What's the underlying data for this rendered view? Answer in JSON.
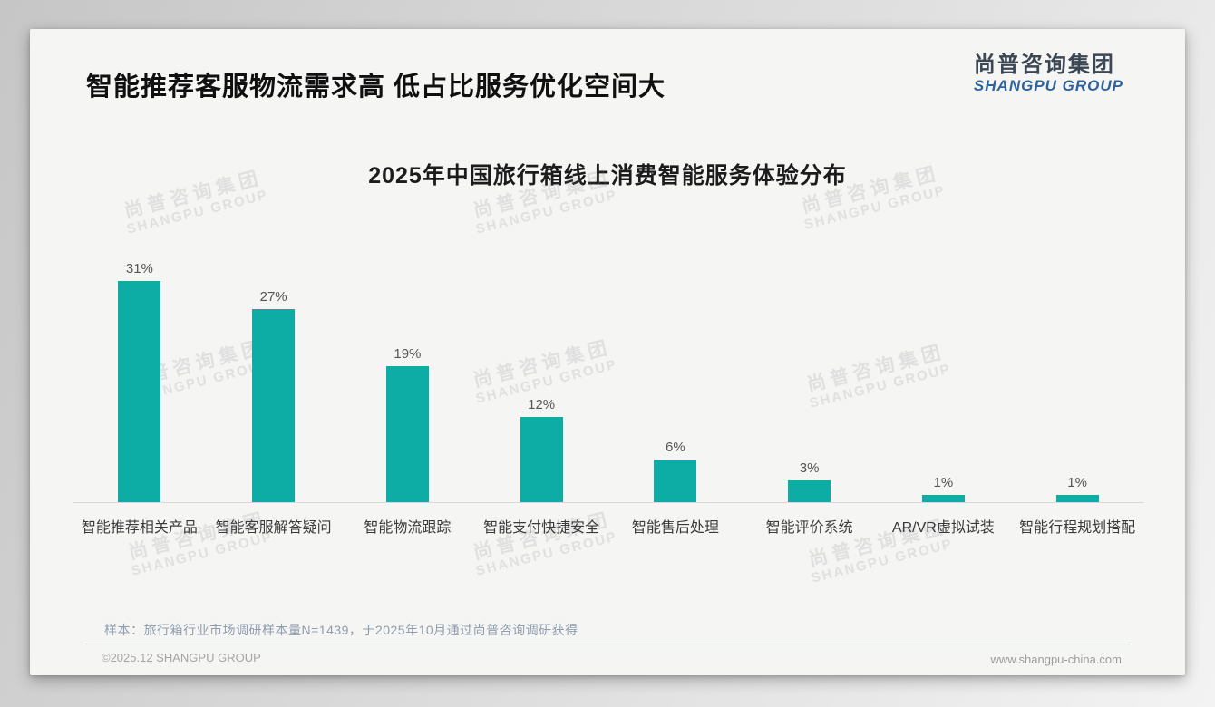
{
  "header": {
    "title": "智能推荐客服物流需求高 低占比服务优化空间大",
    "logo_cn": "尚普咨询集团",
    "logo_en": "SHANGPU GROUP"
  },
  "watermark": {
    "line1": "尚普咨询集团",
    "line2": "SHANGPU GROUP"
  },
  "chart_data": {
    "type": "bar",
    "title": "2025年中国旅行箱线上消费智能服务体验分布",
    "categories": [
      "智能推荐相关产品",
      "智能客服解答疑问",
      "智能物流跟踪",
      "智能支付快捷安全",
      "智能售后处理",
      "智能评价系统",
      "AR/VR虚拟试装",
      "智能行程规划搭配"
    ],
    "values": [
      31,
      27,
      19,
      12,
      6,
      3,
      1,
      1
    ],
    "value_labels": [
      "31%",
      "27%",
      "19%",
      "12%",
      "6%",
      "3%",
      "1%",
      "1%"
    ],
    "unit": "%",
    "bar_color": "#0dada5",
    "ylim": [
      0,
      33
    ],
    "grid": false,
    "legend": "none",
    "xlabel": "",
    "ylabel": ""
  },
  "footnote": "样本：旅行箱行业市场调研样本量N=1439，于2025年10月通过尚普咨询调研获得",
  "footer": {
    "copyright": "©2025.12 SHANGPU GROUP",
    "website": "www.shangpu-china.com"
  },
  "colors": {
    "bar": "#0dada5",
    "logo_blue": "#2e639e",
    "logo_dark": "#3b4754",
    "footnote_text": "#8f9dae"
  }
}
